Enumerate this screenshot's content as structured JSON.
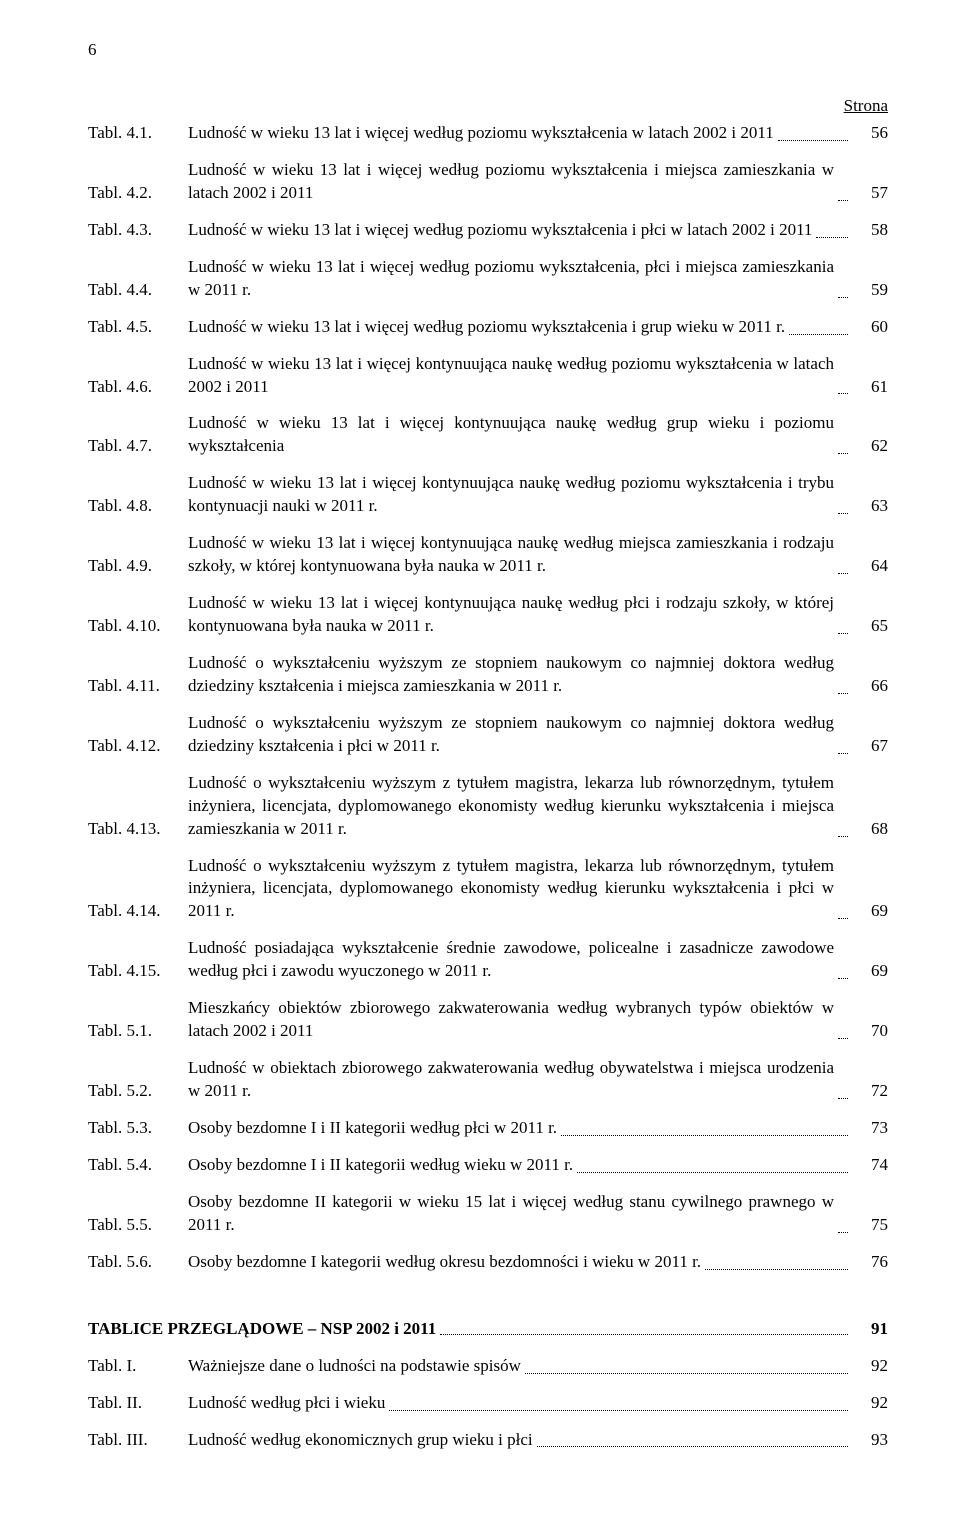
{
  "pageNumber": "6",
  "stronaHeader": "Strona",
  "entries": [
    {
      "label": "Tabl. 4.1.",
      "text": "Ludność w wieku 13 lat i więcej według poziomu wykształcenia w latach 2002 i 2011",
      "page": "56"
    },
    {
      "label": "Tabl. 4.2.",
      "text": "Ludność w wieku 13 lat i więcej według poziomu wykształcenia i miejsca zamieszkania w latach 2002 i 2011",
      "page": "57"
    },
    {
      "label": "Tabl. 4.3.",
      "text": "Ludność w wieku 13 lat i więcej według poziomu wykształcenia i płci w latach 2002 i 2011",
      "page": "58"
    },
    {
      "label": "Tabl. 4.4.",
      "text": "Ludność w wieku 13 lat i więcej według poziomu wykształcenia, płci i miejsca zamieszkania w 2011 r.",
      "page": "59"
    },
    {
      "label": "Tabl. 4.5.",
      "text": "Ludność w wieku 13 lat i więcej według poziomu wykształcenia i grup wieku w 2011 r.",
      "page": "60"
    },
    {
      "label": "Tabl. 4.6.",
      "text": "Ludność w wieku 13 lat i więcej kontynuująca naukę według poziomu wykształcenia w latach 2002 i 2011",
      "page": "61"
    },
    {
      "label": "Tabl. 4.7.",
      "text": "Ludność w wieku 13 lat i więcej kontynuująca naukę według grup wieku i poziomu wykształcenia",
      "page": "62"
    },
    {
      "label": "Tabl. 4.8.",
      "text": "Ludność w wieku 13 lat i więcej kontynuująca naukę według poziomu wykształcenia i trybu kontynuacji nauki w 2011 r.",
      "page": "63"
    },
    {
      "label": "Tabl. 4.9.",
      "text": "Ludność w wieku 13 lat i więcej kontynuująca naukę według miejsca zamieszkania i rodzaju szkoły, w której kontynuowana była nauka w 2011 r.",
      "page": "64"
    },
    {
      "label": "Tabl. 4.10.",
      "text": "Ludność w wieku 13 lat i więcej kontynuująca naukę według płci i rodzaju szkoły, w której kontynuowana była nauka w 2011 r.",
      "page": "65"
    },
    {
      "label": "Tabl. 4.11.",
      "text": "Ludność o wykształceniu wyższym ze stopniem naukowym co najmniej doktora według dziedziny kształcenia i miejsca zamieszkania w 2011 r.",
      "page": "66"
    },
    {
      "label": "Tabl. 4.12.",
      "text": "Ludność o wykształceniu wyższym ze stopniem naukowym co najmniej doktora według dziedziny kształcenia i płci w 2011 r.",
      "page": "67"
    },
    {
      "label": "Tabl. 4.13.",
      "text": "Ludność o wykształceniu wyższym z tytułem magistra, lekarza lub równorzędnym, tytułem inżyniera, licencjata, dyplomowanego ekonomisty według kierunku wykształcenia i miejsca zamieszkania w 2011 r.",
      "page": "68"
    },
    {
      "label": "Tabl. 4.14.",
      "text": "Ludność o wykształceniu wyższym z tytułem magistra, lekarza lub równorzędnym, tytułem inżyniera, licencjata, dyplomowanego ekonomisty według kierunku wykształcenia i płci w 2011 r.",
      "page": "69"
    },
    {
      "label": "Tabl. 4.15.",
      "text": "Ludność posiadająca wykształcenie średnie zawodowe, policealne i zasadnicze zawodowe według płci i zawodu wyuczonego w 2011 r.",
      "page": "69"
    },
    {
      "label": "Tabl. 5.1.",
      "text": "Mieszkańcy obiektów zbiorowego zakwaterowania według wybranych typów obiektów w latach 2002 i 2011",
      "page": "70"
    },
    {
      "label": "Tabl. 5.2.",
      "text": "Ludność w obiektach zbiorowego zakwaterowania według obywatelstwa i miejsca urodzenia w 2011 r.",
      "page": "72"
    },
    {
      "label": "Tabl. 5.3.",
      "text": "Osoby bezdomne I i II kategorii według płci w 2011 r.",
      "page": "73"
    },
    {
      "label": "Tabl. 5.4.",
      "text": "Osoby bezdomne I i II kategorii według wieku w 2011 r.",
      "page": "74"
    },
    {
      "label": "Tabl. 5.5.",
      "text": "Osoby bezdomne II kategorii w wieku 15 lat i więcej według stanu cywilnego prawnego w 2011 r.",
      "page": "75"
    },
    {
      "label": "Tabl. 5.6.",
      "text": "Osoby bezdomne I kategorii według okresu bezdomności i wieku w 2011 r.",
      "page": "76"
    }
  ],
  "section": {
    "title": "TABLICE PRZEGLĄDOWE – NSP 2002 i 2011",
    "page": "91"
  },
  "subEntries": [
    {
      "label": "Tabl. I.",
      "text": "Ważniejsze dane o ludności na podstawie spisów",
      "page": "92"
    },
    {
      "label": "Tabl. II.",
      "text": "Ludność według płci i wieku",
      "page": "92"
    },
    {
      "label": "Tabl. III.",
      "text": "Ludność według ekonomicznych grup wieku i płci",
      "page": "93"
    }
  ],
  "style": {
    "pageWidth": 960,
    "pageHeight": 1484,
    "fontFamily": "Times New Roman",
    "fontSizeBody": 17,
    "textColor": "#000000",
    "backgroundColor": "#ffffff",
    "labelColWidth": 100,
    "pageColWidth": 36
  }
}
